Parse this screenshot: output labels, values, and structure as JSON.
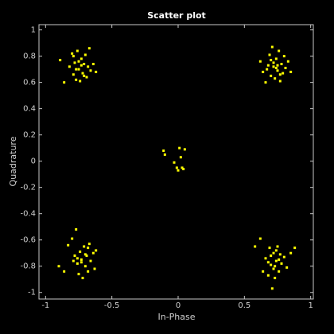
{
  "chart_data": {
    "type": "scatter",
    "title": "Scatter plot",
    "x_label": "In-Phase",
    "y_label": "Quadrature",
    "xlim": [
      -1.05,
      1.02
    ],
    "ylim": [
      -1.05,
      1.04
    ],
    "xticks": [
      -1,
      -0.5,
      0,
      0.5,
      1
    ],
    "yticks": [
      -1,
      -0.8,
      -0.6,
      -0.4,
      -0.2,
      0,
      0.2,
      0.4,
      0.6,
      0.8,
      1
    ],
    "grid": false,
    "series": [
      {
        "color": "#ffff00",
        "x": [
          -0.89,
          -0.86,
          -0.82,
          -0.8,
          -0.79,
          -0.78,
          -0.77,
          -0.76,
          -0.75,
          -0.74,
          -0.73,
          -0.72,
          -0.71,
          -0.7,
          -0.69,
          -0.68,
          -0.67,
          -0.66,
          -0.64,
          -0.62,
          -0.79,
          -0.75,
          -0.71,
          -0.77,
          -0.73,
          0.62,
          0.64,
          0.66,
          0.68,
          0.69,
          0.7,
          0.71,
          0.72,
          0.73,
          0.74,
          0.75,
          0.76,
          0.77,
          0.78,
          0.79,
          0.8,
          0.81,
          0.83,
          0.85,
          0.67,
          0.72,
          0.75,
          0.7,
          0.77,
          0.74,
          -0.9,
          -0.86,
          -0.83,
          -0.8,
          -0.78,
          -0.77,
          -0.76,
          -0.75,
          -0.74,
          -0.73,
          -0.72,
          -0.71,
          -0.7,
          -0.69,
          -0.68,
          -0.67,
          -0.66,
          -0.64,
          -0.63,
          -0.62,
          -0.76,
          -0.73,
          -0.7,
          -0.79,
          -0.68,
          0.58,
          0.62,
          0.64,
          0.66,
          0.68,
          0.69,
          0.7,
          0.71,
          0.72,
          0.73,
          0.74,
          0.75,
          0.76,
          0.77,
          0.78,
          0.8,
          0.82,
          0.85,
          0.88,
          0.7,
          0.74,
          0.72,
          0.76,
          0.68,
          0.73,
          -0.11,
          -0.1,
          -0.03,
          -0.01,
          0,
          0.01,
          0.02,
          0.03,
          0.05,
          0.04
        ],
        "values": [
          0.77,
          0.6,
          0.72,
          0.82,
          0.66,
          0.75,
          0.62,
          0.84,
          0.7,
          0.61,
          0.78,
          0.67,
          0.74,
          0.81,
          0.64,
          0.72,
          0.86,
          0.69,
          0.74,
          0.68,
          0.8,
          0.76,
          0.65,
          0.7,
          0.73,
          0.76,
          0.68,
          0.6,
          0.73,
          0.81,
          0.65,
          0.87,
          0.72,
          0.63,
          0.78,
          0.69,
          0.84,
          0.61,
          0.74,
          0.67,
          0.8,
          0.71,
          0.76,
          0.68,
          0.7,
          0.75,
          0.73,
          0.77,
          0.66,
          0.71,
          -0.8,
          -0.84,
          -0.64,
          -0.59,
          -0.72,
          -0.52,
          -0.78,
          -0.86,
          -0.69,
          -0.75,
          -0.89,
          -0.65,
          -0.8,
          -0.72,
          -0.84,
          -0.63,
          -0.76,
          -0.7,
          -0.82,
          -0.68,
          -0.74,
          -0.77,
          -0.71,
          -0.76,
          -0.66,
          -0.65,
          -0.59,
          -0.84,
          -0.74,
          -0.87,
          -0.66,
          -0.79,
          -0.97,
          -0.7,
          -0.89,
          -0.76,
          -0.65,
          -0.84,
          -0.71,
          -0.78,
          -0.73,
          -0.81,
          -0.7,
          -0.66,
          -0.72,
          -0.68,
          -0.82,
          -0.75,
          -0.77,
          -0.8,
          0.08,
          0.05,
          -0.01,
          -0.05,
          -0.07,
          0.1,
          0.03,
          -0.05,
          0.09,
          -0.06
        ]
      }
    ]
  }
}
